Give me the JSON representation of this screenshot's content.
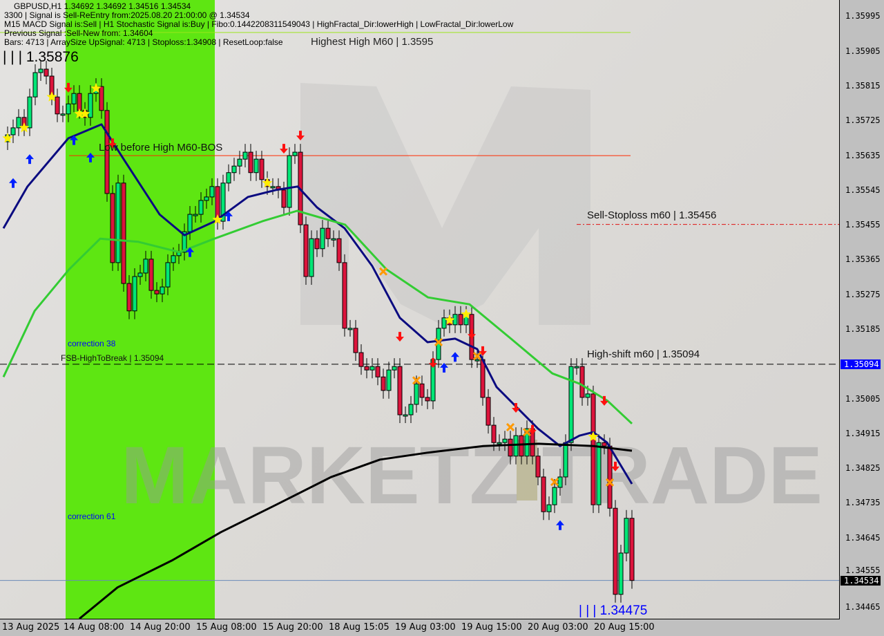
{
  "header": {
    "symbol_line": "GBPUSD,H1  1.34692 1.34692 1.34516 1.34534",
    "signal_line": "3300 | Signal is Sell-ReEntry from:2025.08.20 21:00:00 @ 1.34534",
    "macd_line": "M15 MACD Signal is:Sell | H1 Stochastic Signal is:Buy | Fibo:0.1442208311549043 | HighFractal_Dir:lowerHigh | LowFractal_Dir:lowerLow",
    "overlay_text": "Highest High   M60 | 1.3595",
    "previous_line": "Previous Signal :Sell-New  from: 1.34604",
    "bars_line": "Bars: 4713 | ArraySize UpSignal: 4713 | Stoploss:1.34908 | ResetLoop:false"
  },
  "annotations": {
    "top_level": "| | | 1.35876",
    "bottom_level": "| | | 1.34475",
    "low_before_high": "Low before High   M60-BOS",
    "sell_stoploss": "Sell-Stoploss m60 | 1.35456",
    "high_shift": "High-shift m60 | 1.35094",
    "fsb": "FSB-HighToBreak | 1.35094",
    "correction38": "correction 38",
    "correction61": "correction 61",
    "watermark": "MARKETZ TRADE"
  },
  "colors": {
    "bull": "#00e676",
    "bear": "#dc143c",
    "fast_ma": "#0b0b80",
    "mid_ma": "#33cc33",
    "slow_ma": "#000000",
    "zone": "#5ee612",
    "accent_blue": "#0000ff",
    "stop_red": "#ff2a00"
  },
  "chart_data": {
    "type": "candlestick",
    "symbol": "GBPUSD",
    "timeframe": "H1",
    "ylim": [
      1.3442,
      1.36037
    ],
    "y_ticks": [
      "1.35995",
      "1.35905",
      "1.35815",
      "1.35725",
      "1.35635",
      "1.35545",
      "1.35455",
      "1.35365",
      "1.35275",
      "1.35185",
      "1.35094",
      "1.35005",
      "1.34915",
      "1.34825",
      "1.34735",
      "1.34645",
      "1.34555",
      "1.34534",
      "1.34465"
    ],
    "y_tick_values": [
      1.35995,
      1.35905,
      1.35815,
      1.35725,
      1.35635,
      1.35545,
      1.35455,
      1.35365,
      1.35275,
      1.35185,
      1.35094,
      1.35005,
      1.34915,
      1.34825,
      1.34735,
      1.34645,
      1.34555,
      1.34534,
      1.34465
    ],
    "highlighted_prices": {
      "high_shift": "1.35094",
      "current": "1.34534"
    },
    "x_ticks": [
      {
        "label": "13 Aug 2025",
        "index": -1
      },
      {
        "label": "14 Aug 08:00",
        "index": 11
      },
      {
        "label": "14 Aug 20:00",
        "index": 23
      },
      {
        "label": "15 Aug 08:00",
        "index": 35
      },
      {
        "label": "15 Aug 20:00",
        "index": 47
      },
      {
        "label": "18 Aug 15:05",
        "index": 59
      },
      {
        "label": "19 Aug 03:00",
        "index": 71
      },
      {
        "label": "19 Aug 15:00",
        "index": 83
      },
      {
        "label": "20 Aug 03:00",
        "index": 95
      },
      {
        "label": "20 Aug 15:00",
        "index": 107
      }
    ],
    "first_open": 1.3567,
    "closes": [
      1.35688,
      1.35706,
      1.35733,
      1.35706,
      1.35786,
      1.35849,
      1.35858,
      1.3584,
      1.35786,
      1.35742,
      1.35742,
      1.35768,
      1.35795,
      1.35751,
      1.35733,
      1.35795,
      1.35813,
      1.35751,
      1.35536,
      1.35357,
      1.35563,
      1.35303,
      1.35232,
      1.35321,
      1.3533,
      1.35366,
      1.35285,
      1.35276,
      1.35294,
      1.35357,
      1.35375,
      1.35384,
      1.35437,
      1.35482,
      1.35482,
      1.35518,
      1.35527,
      1.35554,
      1.35464,
      1.35563,
      1.3559,
      1.35607,
      1.35625,
      1.35643,
      1.3559,
      1.35625,
      1.35572,
      1.35554,
      1.35554,
      1.35545,
      1.355,
      1.35634,
      1.35643,
      1.35455,
      1.35321,
      1.35419,
      1.35393,
      1.35446,
      1.35419,
      1.35419,
      1.35357,
      1.35187,
      1.35187,
      1.35124,
      1.35088,
      1.35079,
      1.35088,
      1.35061,
      1.35026,
      1.35079,
      1.35088,
      1.34963,
      1.34963,
      1.3499,
      1.35043,
      1.35008,
      1.34999,
      1.35106,
      1.35187,
      1.35214,
      1.35196,
      1.35223,
      1.35196,
      1.35223,
      1.35106,
      1.35106,
      1.35008,
      1.34936,
      1.34891,
      1.34891,
      1.349,
      1.34856,
      1.34909,
      1.34856,
      1.34927,
      1.34856,
      1.34802,
      1.34712,
      1.3473,
      1.34775,
      1.34802,
      1.34891,
      1.35088,
      1.35088,
      1.35008,
      1.35017,
      1.3473,
      1.34891,
      1.34882,
      1.34721,
      1.34498,
      1.34605,
      1.34695,
      1.34534
    ],
    "moving_averages": [
      {
        "key": "fast",
        "points": [
          [
            -0.75,
            1.35446
          ],
          [
            3.6,
            1.35554
          ],
          [
            11,
            1.35679
          ],
          [
            17,
            1.35715
          ],
          [
            21,
            1.35625
          ],
          [
            27.5,
            1.35482
          ],
          [
            32,
            1.35428
          ],
          [
            37.5,
            1.35464
          ],
          [
            43.5,
            1.35527
          ],
          [
            48.5,
            1.35545
          ],
          [
            52.5,
            1.35554
          ],
          [
            56,
            1.355
          ],
          [
            61,
            1.35446
          ],
          [
            66,
            1.35348
          ],
          [
            71,
            1.35214
          ],
          [
            76,
            1.35151
          ],
          [
            81,
            1.3516
          ],
          [
            85,
            1.35133
          ],
          [
            88.5,
            1.35035
          ],
          [
            96,
            1.34927
          ],
          [
            100,
            1.34882
          ],
          [
            103.5,
            1.34909
          ],
          [
            106,
            1.34918
          ],
          [
            108.5,
            1.34891
          ],
          [
            113,
            1.34784
          ]
        ]
      },
      {
        "key": "mid",
        "points": [
          [
            -0.75,
            1.35061
          ],
          [
            4.9,
            1.35232
          ],
          [
            11.1,
            1.35339
          ],
          [
            16.75,
            1.35419
          ],
          [
            23.6,
            1.35411
          ],
          [
            31.1,
            1.35384
          ],
          [
            37.4,
            1.35419
          ],
          [
            46.1,
            1.35464
          ],
          [
            52.4,
            1.35491
          ],
          [
            61.1,
            1.35455
          ],
          [
            68.6,
            1.35339
          ],
          [
            76.1,
            1.35267
          ],
          [
            83.6,
            1.35249
          ],
          [
            91.1,
            1.3516
          ],
          [
            98.6,
            1.3507
          ],
          [
            103.6,
            1.35043
          ],
          [
            108.6,
            1.34999
          ],
          [
            113,
            1.3494
          ]
        ]
      },
      {
        "key": "slow",
        "points": [
          [
            13,
            1.34435
          ],
          [
            19.9,
            1.34516
          ],
          [
            29.9,
            1.34587
          ],
          [
            38.6,
            1.34659
          ],
          [
            48.6,
            1.3473
          ],
          [
            58.6,
            1.34802
          ],
          [
            67.4,
            1.34847
          ],
          [
            76.1,
            1.34865
          ],
          [
            86.1,
            1.34882
          ],
          [
            96.1,
            1.34888
          ],
          [
            106.1,
            1.34882
          ],
          [
            113,
            1.3487
          ]
        ]
      }
    ],
    "levels": {
      "low_before_high": 1.35634,
      "sell_stoploss": 1.35456,
      "high_shift": 1.35094,
      "current": 1.34534,
      "fibo_top": 1.35195
    },
    "zone_index_range": [
      11,
      37
    ],
    "markers": {
      "star": [
        [
          0,
          1.35679
        ],
        [
          3,
          1.35706
        ],
        [
          8,
          1.35786
        ],
        [
          13,
          1.35742
        ],
        [
          14,
          1.35742
        ],
        [
          16,
          1.35808
        ],
        [
          38,
          1.35468
        ],
        [
          47,
          1.35563
        ],
        [
          80,
          1.35208
        ],
        [
          83,
          1.35223
        ],
        [
          106,
          1.34906
        ]
      ],
      "up_arrow": [
        [
          1,
          1.35563
        ],
        [
          4,
          1.35625
        ],
        [
          12,
          1.35674
        ],
        [
          15,
          1.35629
        ],
        [
          33,
          1.35384
        ],
        [
          40,
          1.35477
        ],
        [
          79,
          1.35085
        ],
        [
          81,
          1.35113
        ],
        [
          100,
          1.34677
        ]
      ],
      "down_arrow": [
        [
          11,
          1.3581
        ],
        [
          19,
          1.35666
        ],
        [
          50,
          1.35652
        ],
        [
          53,
          1.35686
        ],
        [
          71,
          1.35165
        ],
        [
          77,
          1.35097
        ],
        [
          84,
          1.35172
        ],
        [
          86,
          1.35128
        ],
        [
          92,
          1.34981
        ],
        [
          95,
          1.34924
        ],
        [
          108,
          1.34999
        ],
        [
          110,
          1.34829
        ]
      ],
      "cross": [
        [
          68,
          1.35334
        ],
        [
          74,
          1.35052
        ],
        [
          78,
          1.35151
        ],
        [
          85,
          1.35115
        ],
        [
          91,
          1.34931
        ],
        [
          94,
          1.34918
        ],
        [
          99,
          1.34789
        ],
        [
          109,
          1.34788
        ]
      ]
    }
  }
}
